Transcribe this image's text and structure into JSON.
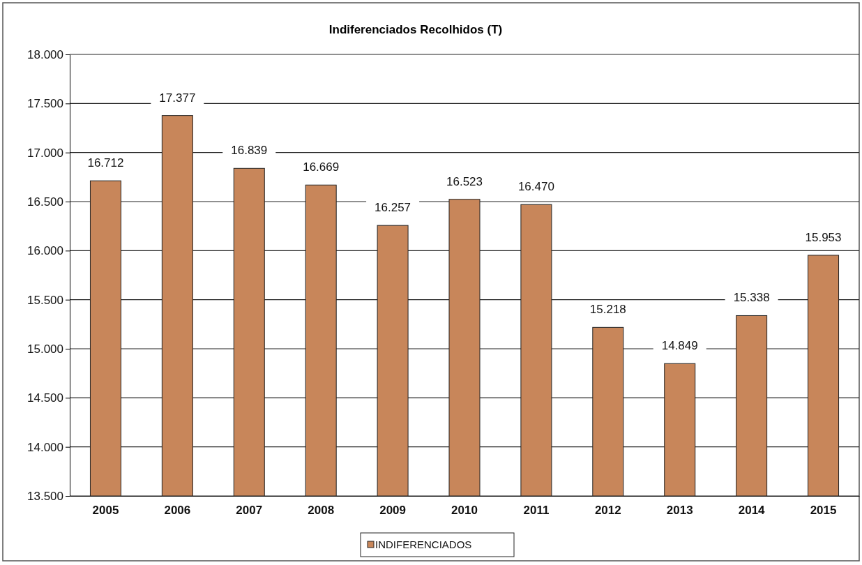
{
  "chart_data": {
    "type": "bar",
    "title": "Indiferenciados Recolhidos (T)",
    "categories": [
      "2005",
      "2006",
      "2007",
      "2008",
      "2009",
      "2010",
      "2011",
      "2012",
      "2013",
      "2014",
      "2015"
    ],
    "series": [
      {
        "name": "INDIFERENCIADOS",
        "color": "#c8865a",
        "values": [
          16712,
          17377,
          16839,
          16669,
          16257,
          16523,
          16470,
          15218,
          14849,
          15338,
          15953
        ],
        "value_labels": [
          "16.712",
          "17.377",
          "16.839",
          "16.669",
          "16.257",
          "16.523",
          "16.470",
          "15.218",
          "14.849",
          "15.338",
          "15.953"
        ]
      }
    ],
    "ylim": [
      13500,
      18000
    ],
    "yticks": [
      {
        "value": 13500,
        "label": "13.500"
      },
      {
        "value": 14000,
        "label": "14.000"
      },
      {
        "value": 14500,
        "label": "14.500"
      },
      {
        "value": 15000,
        "label": "15.000"
      },
      {
        "value": 15500,
        "label": "15.500"
      },
      {
        "value": 16000,
        "label": "16.000"
      },
      {
        "value": 16500,
        "label": "16.500"
      },
      {
        "value": 17000,
        "label": "17.000"
      },
      {
        "value": 17500,
        "label": "17.500"
      },
      {
        "value": 18000,
        "label": "18.000"
      }
    ],
    "grid": "y",
    "legend": "bottom"
  }
}
